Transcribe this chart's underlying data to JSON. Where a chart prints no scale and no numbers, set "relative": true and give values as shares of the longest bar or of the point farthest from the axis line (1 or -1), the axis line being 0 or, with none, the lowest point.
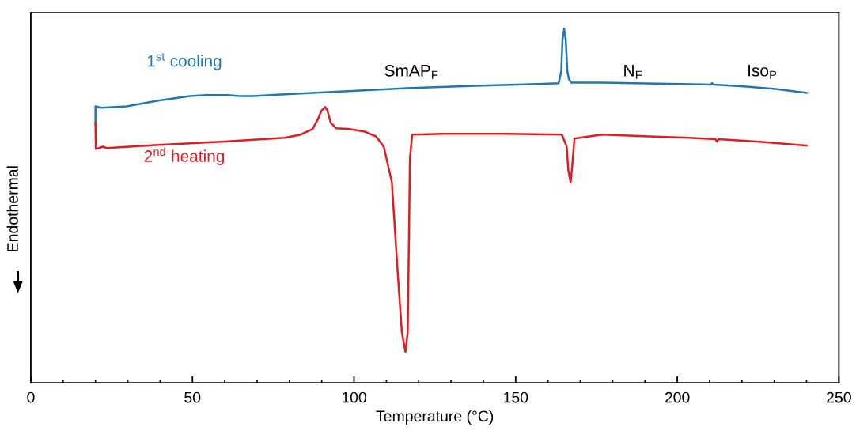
{
  "chart_data": {
    "type": "line",
    "relative": true,
    "xlabel": "Temperature (°C)",
    "ylabel": "Endothermal",
    "xlim": [
      0,
      250
    ],
    "xticks": [
      0,
      50,
      100,
      150,
      200,
      250
    ],
    "grid": false,
    "legend": false,
    "marker": "none",
    "line_style": "solid",
    "tick_labels": "x",
    "series": [
      {
        "name": "1$^{st}$ cooling",
        "color": "#1f77b4",
        "x": [
          20,
          20,
          21.8,
          29.6,
          39.4,
          49.2,
          54.1,
          61.0,
          64.6,
          68.8,
          78.6,
          98.2,
          117.8,
          137.4,
          156.9,
          163.3,
          164.1,
          164.5,
          165.0,
          165.5,
          166.0,
          166.5,
          167.2,
          168.0,
          176.5,
          186.3,
          201.0,
          210.3,
          210.8,
          211.3,
          220.6,
          230.4,
          240.0
        ],
        "values": [
          0.734,
          0.781,
          0.777,
          0.781,
          0.797,
          0.81,
          0.8125,
          0.8125,
          0.81,
          0.81,
          0.815,
          0.824,
          0.833,
          0.839,
          0.844,
          0.846,
          0.879,
          0.969,
          1.0,
          0.969,
          0.879,
          0.857,
          0.848,
          0.848,
          0.848,
          0.846,
          0.844,
          0.842,
          0.846,
          0.842,
          0.837,
          0.83,
          0.819
        ]
      },
      {
        "name": "2$^{nd}$ heating",
        "color": "#e41a1c",
        "x": [
          20,
          20.1,
          21.1,
          22.3,
          23.5,
          39.4,
          59.0,
          78.6,
          83.5,
          87.2,
          88.9,
          89.9,
          91.1,
          91.8,
          92.8,
          94.5,
          98.2,
          103.1,
          106.8,
          109.2,
          111.7,
          113.6,
          114.8,
          115.9,
          116.6,
          117.0,
          117.3,
          118.0,
          127.6,
          147.2,
          164.3,
          165.8,
          166.3,
          167.0,
          167.5,
          168.2,
          176.5,
          191.2,
          203.5,
          211.8,
          212.3,
          212.8,
          225.5,
          240.0
        ],
        "values": [
          0.734,
          0.661,
          0.663,
          0.667,
          0.663,
          0.672,
          0.681,
          0.692,
          0.701,
          0.717,
          0.746,
          0.768,
          0.779,
          0.768,
          0.734,
          0.719,
          0.717,
          0.71,
          0.696,
          0.667,
          0.567,
          0.299,
          0.143,
          0.087,
          0.143,
          0.411,
          0.634,
          0.701,
          0.703,
          0.703,
          0.701,
          0.667,
          0.6,
          0.565,
          0.612,
          0.69,
          0.701,
          0.696,
          0.692,
          0.688,
          0.681,
          0.688,
          0.681,
          0.67
        ]
      }
    ],
    "annotations": [
      "SmAP$_{F}$",
      "N$_{F}$",
      "Iso$_{P}$"
    ]
  }
}
